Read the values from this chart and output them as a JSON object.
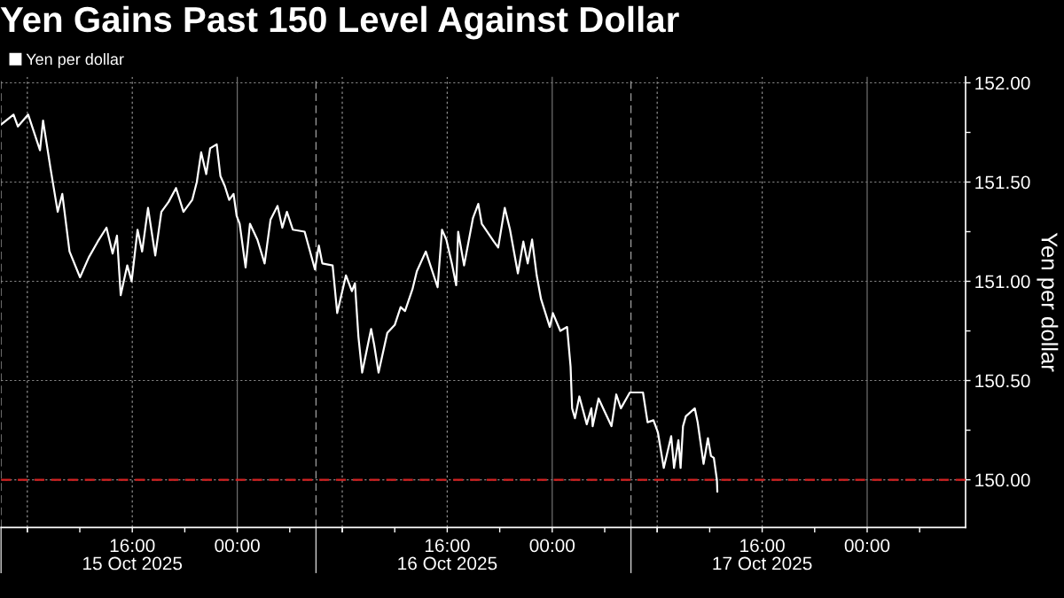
{
  "chart_data": {
    "type": "line",
    "title": "Yen Gains Past 150 Level Against Dollar",
    "ylabel": "Yen per dollar",
    "x": [
      "2025-10-15T06:00",
      "2025-10-15T06:57",
      "2025-10-15T07:17",
      "2025-10-15T08:04",
      "2025-10-15T08:58",
      "2025-10-15T09:12",
      "2025-10-15T09:26",
      "2025-10-15T09:46",
      "2025-10-15T10:19",
      "2025-10-15T10:40",
      "2025-10-15T11:13",
      "2025-10-15T12:01",
      "2025-10-15T12:41",
      "2025-10-15T13:22",
      "2025-10-15T14:02",
      "2025-10-15T14:30",
      "2025-10-15T14:50",
      "2025-10-15T15:07",
      "2025-10-15T15:37",
      "2025-10-15T15:57",
      "2025-10-15T16:24",
      "2025-10-15T16:45",
      "2025-10-15T17:12",
      "2025-10-15T17:45",
      "2025-10-15T18:13",
      "2025-10-15T18:46",
      "2025-10-15T19:20",
      "2025-10-15T19:54",
      "2025-10-15T20:34",
      "2025-10-15T20:55",
      "2025-10-15T21:15",
      "2025-10-15T21:38",
      "2025-10-15T21:56",
      "2025-10-15T22:26",
      "2025-10-15T22:43",
      "2025-10-15T23:03",
      "2025-10-15T23:23",
      "2025-10-15T23:43",
      "2025-10-15T23:57",
      "2025-10-16T00:11",
      "2025-10-16T00:38",
      "2025-10-16T00:58",
      "2025-10-16T01:32",
      "2025-10-16T02:05",
      "2025-10-16T02:32",
      "2025-10-16T03:04",
      "2025-10-16T03:26",
      "2025-10-16T03:47",
      "2025-10-16T04:14",
      "2025-10-16T05:08",
      "2025-10-16T05:55",
      "2025-10-16T06:13",
      "2025-10-16T06:29",
      "2025-10-16T07:16",
      "2025-10-16T07:37",
      "2025-10-16T08:17",
      "2025-10-16T08:44",
      "2025-10-16T08:58",
      "2025-10-16T09:14",
      "2025-10-16T09:31",
      "2025-10-16T10:12",
      "2025-10-16T10:26",
      "2025-10-16T10:46",
      "2025-10-16T11:26",
      "2025-10-16T12:00",
      "2025-10-16T12:27",
      "2025-10-16T12:47",
      "2025-10-16T13:21",
      "2025-10-16T13:41",
      "2025-10-16T14:22",
      "2025-10-16T15:16",
      "2025-10-16T15:36",
      "2025-10-16T15:56",
      "2025-10-16T16:23",
      "2025-10-16T16:41",
      "2025-10-16T16:50",
      "2025-10-16T17:17",
      "2025-10-16T17:58",
      "2025-10-16T18:22",
      "2025-10-16T18:38",
      "2025-10-16T19:33",
      "2025-10-16T19:53",
      "2025-10-16T20:23",
      "2025-10-16T20:47",
      "2025-10-16T21:23",
      "2025-10-16T21:48",
      "2025-10-16T22:08",
      "2025-10-16T22:28",
      "2025-10-16T22:49",
      "2025-10-16T23:09",
      "2025-10-16T23:49",
      "2025-10-17T00:03",
      "2025-10-17T00:37",
      "2025-10-17T01:08",
      "2025-10-17T01:24",
      "2025-10-17T01:31",
      "2025-10-17T01:44",
      "2025-10-17T02:04",
      "2025-10-17T02:38",
      "2025-10-17T02:59",
      "2025-10-17T03:05",
      "2025-10-17T03:32",
      "2025-10-17T03:53",
      "2025-10-17T04:31",
      "2025-10-17T04:53",
      "2025-10-17T05:14",
      "2025-10-17T05:55",
      "2025-10-17T06:55",
      "2025-10-17T07:16",
      "2025-10-17T07:43",
      "2025-10-17T08:03",
      "2025-10-17T08:30",
      "2025-10-17T09:04",
      "2025-10-17T09:17",
      "2025-10-17T09:37",
      "2025-10-17T09:47",
      "2025-10-17T09:58",
      "2025-10-17T10:11",
      "2025-10-17T10:52",
      "2025-10-17T11:05",
      "2025-10-17T11:32",
      "2025-10-17T11:52",
      "2025-10-17T12:06",
      "2025-10-17T12:19",
      "2025-10-17T12:33",
      "2025-10-17T12:35"
    ],
    "series": [
      {
        "name": "Yen per dollar",
        "color": "#ffffff",
        "values": [
          151.79,
          151.84,
          151.78,
          151.84,
          151.66,
          151.81,
          151.71,
          151.57,
          151.35,
          151.44,
          151.15,
          151.02,
          151.12,
          151.2,
          151.27,
          151.14,
          151.23,
          150.93,
          151.08,
          151.0,
          151.26,
          151.15,
          151.37,
          151.13,
          151.35,
          151.4,
          151.47,
          151.35,
          151.41,
          151.5,
          151.65,
          151.54,
          151.67,
          151.69,
          151.53,
          151.48,
          151.41,
          151.44,
          151.33,
          151.29,
          151.07,
          151.29,
          151.21,
          151.09,
          151.31,
          151.38,
          151.27,
          151.35,
          151.26,
          151.25,
          151.06,
          151.18,
          151.09,
          151.08,
          150.84,
          151.03,
          150.95,
          150.99,
          150.72,
          150.54,
          150.76,
          150.68,
          150.54,
          150.74,
          150.78,
          150.87,
          150.85,
          150.96,
          151.05,
          151.15,
          150.97,
          151.26,
          151.21,
          151.08,
          150.98,
          151.25,
          151.08,
          151.32,
          151.39,
          151.29,
          151.2,
          151.17,
          151.37,
          151.26,
          151.04,
          151.2,
          151.09,
          151.21,
          151.03,
          150.91,
          150.77,
          150.84,
          150.75,
          150.77,
          150.57,
          150.36,
          150.31,
          150.42,
          150.28,
          150.36,
          150.27,
          150.41,
          150.36,
          150.27,
          150.43,
          150.36,
          150.44,
          150.44,
          150.29,
          150.3,
          150.24,
          150.06,
          150.22,
          150.06,
          150.2,
          150.06,
          150.27,
          150.32,
          150.36,
          150.29,
          150.08,
          150.21,
          150.12,
          150.11,
          150.0,
          149.94
        ]
      }
    ],
    "xlim": [
      "2025-10-15T06:00",
      "2025-10-18T07:30"
    ],
    "xticks": [
      {
        "value": "2025-10-15T12:00",
        "label": null
      },
      {
        "value": "2025-10-15T16:00",
        "label": "16:00\n15 Oct 2025"
      },
      {
        "value": "2025-10-15T20:00",
        "label": null
      },
      {
        "value": "2025-10-16T00:00",
        "label": "00:00"
      },
      {
        "value": "2025-10-16T04:00",
        "label": null
      },
      {
        "value": "2025-10-16T12:00",
        "label": null
      },
      {
        "value": "2025-10-16T16:00",
        "label": "16:00\n16 Oct 2025"
      },
      {
        "value": "2025-10-16T20:00",
        "label": null
      },
      {
        "value": "2025-10-17T00:00",
        "label": "00:00"
      },
      {
        "value": "2025-10-17T04:00",
        "label": null
      },
      {
        "value": "2025-10-17T12:00",
        "label": null
      },
      {
        "value": "2025-10-17T16:00",
        "label": "16:00\n17 Oct 2025"
      },
      {
        "value": "2025-10-17T20:00",
        "label": null
      },
      {
        "value": "2025-10-18T00:00",
        "label": "00:00"
      },
      {
        "value": "2025-10-18T04:00",
        "label": null
      }
    ],
    "ylim": [
      149.76,
      152.03
    ],
    "yticks": [
      {
        "value": 150,
        "label": "150.00"
      },
      {
        "value": 150.25,
        "label": null
      },
      {
        "value": 150.5,
        "label": "150.50"
      },
      {
        "value": 150.75,
        "label": null
      },
      {
        "value": 151,
        "label": "151.00"
      },
      {
        "value": 151.25,
        "label": null
      },
      {
        "value": 151.5,
        "label": "151.50"
      },
      {
        "value": 151.75,
        "label": null
      },
      {
        "value": 152,
        "label": "152.00"
      }
    ],
    "grid": true,
    "legend": "top left",
    "ref_lines": [
      {
        "axis": "y",
        "value": 150,
        "color": "#d62222",
        "line_style": "dashed"
      },
      {
        "axis": "x",
        "value": "2025-10-15T06:00",
        "color": "#a0a0a0",
        "line_style": "dashed"
      },
      {
        "axis": "x",
        "value": "2025-10-16T06:00",
        "color": "#a0a0a0",
        "line_style": "dashed"
      },
      {
        "axis": "x",
        "value": "2025-10-17T06:00",
        "color": "#a0a0a0",
        "line_style": "dashed"
      },
      {
        "axis": "x",
        "value": "2025-10-15T08:00",
        "color": "#8a8a8a",
        "line_style": "dotted"
      },
      {
        "axis": "x",
        "value": "2025-10-16T08:00",
        "color": "#8a8a8a",
        "line_style": "dotted"
      },
      {
        "axis": "x",
        "value": "2025-10-17T08:00",
        "color": "#8a8a8a",
        "line_style": "dotted"
      }
    ]
  }
}
